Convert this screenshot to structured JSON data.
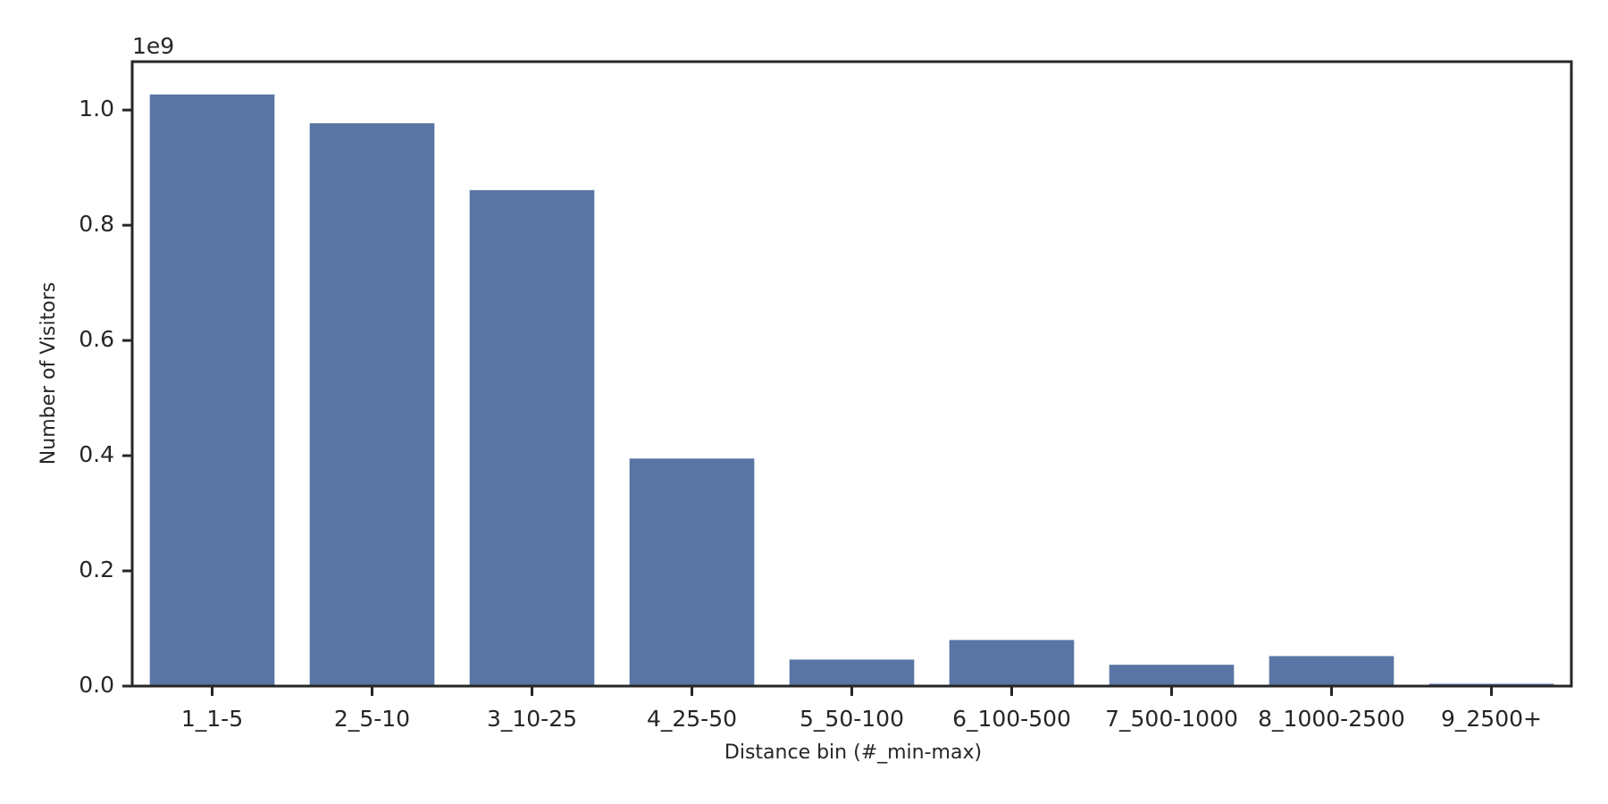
{
  "chart_data": {
    "type": "bar",
    "x_label": "Distance bin (#_min-max)",
    "y_label": "Number of Visitors",
    "y_offset_label": "1e9",
    "categories": [
      "1_1-5",
      "2_5-10",
      "3_10-25",
      "4_25-50",
      "5_50-100",
      "6_100-500",
      "7_500-1000",
      "8_1000-2500",
      "9_2500+"
    ],
    "values": [
      1.027,
      0.977,
      0.861,
      0.395,
      0.046,
      0.08,
      0.037,
      0.052,
      0.004
    ],
    "color": "#5975a4",
    "ylim": [
      0,
      1.084
    ],
    "yticks": [
      {
        "value": 0,
        "label": "0.0"
      },
      {
        "value": 0.2,
        "label": "0.2"
      },
      {
        "value": 0.4,
        "label": "0.4"
      },
      {
        "value": 0.6,
        "label": "0.6"
      },
      {
        "value": 0.8,
        "label": "0.8"
      },
      {
        "value": 1,
        "label": "1.0"
      }
    ],
    "grid": false
  }
}
